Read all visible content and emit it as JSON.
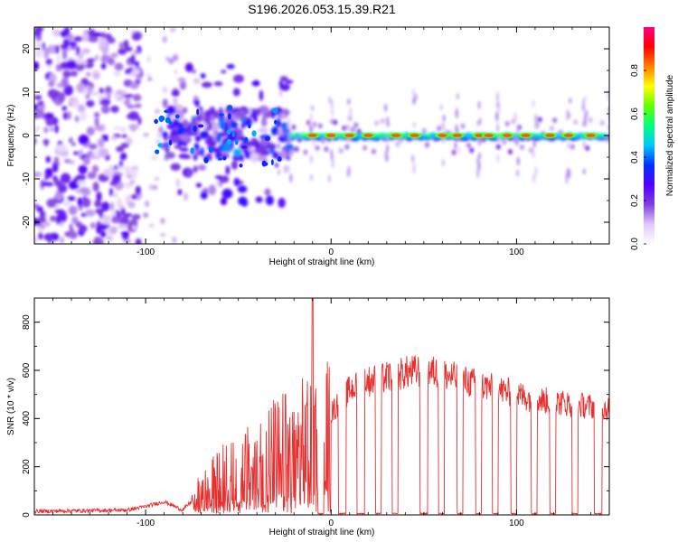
{
  "title": "S196.2026.053.15.39.R21",
  "chart_data": [
    {
      "type": "heatmap",
      "name": "spectrogram",
      "xlabel": "Height of straight line (km)",
      "ylabel": "Frequency (Hz)",
      "xlim": [
        -160,
        150
      ],
      "ylim": [
        -25,
        25
      ],
      "x_ticks": [
        -100,
        0,
        100
      ],
      "y_ticks": [
        -20,
        -10,
        0,
        10,
        20
      ],
      "colorbar": {
        "label": "Normalized spectral amplitude",
        "range": [
          0.0,
          1.0
        ],
        "ticks": [
          0.0,
          0.2,
          0.4,
          0.6,
          0.8
        ],
        "tick_labels": [
          "0.0",
          "0.2",
          "0.4",
          "0.6",
          "0.8"
        ],
        "colors": [
          "#ffffff",
          "#e0c8f8",
          "#8040e0",
          "#5000ff",
          "#0030ff",
          "#00c8ff",
          "#00ff80",
          "#60ff00",
          "#ffff00",
          "#ff8000",
          "#ff0000",
          "#ff0080"
        ]
      },
      "regions": [
        {
          "x": [
            -160,
            -103
          ],
          "desc": "noise",
          "max_amplitude": 0.25
        },
        {
          "x": [
            -103,
            -25
          ],
          "desc": "transition",
          "max_amplitude": 0.4
        },
        {
          "x": [
            -25,
            150
          ],
          "desc": "carrier near 0 Hz",
          "max_amplitude": 0.9
        }
      ],
      "carrier_frequency_hz": 0,
      "hot_spots_km": [
        -10,
        0,
        10,
        20,
        35,
        45,
        60,
        68,
        80,
        85,
        95,
        105,
        118,
        128,
        140
      ]
    },
    {
      "type": "line",
      "name": "snr",
      "xlabel": "Height of straight line (km)",
      "ylabel": "SNR (10 * v/v)",
      "xlim": [
        -160,
        150
      ],
      "ylim": [
        0,
        900
      ],
      "x_ticks": [
        -100,
        0,
        100
      ],
      "y_ticks": [
        0,
        200,
        400,
        600,
        800
      ],
      "color": "#e83030",
      "keypoints": [
        {
          "x": -160,
          "y": 15
        },
        {
          "x": -110,
          "y": 20
        },
        {
          "x": -100,
          "y": 35
        },
        {
          "x": -90,
          "y": 55
        },
        {
          "x": -80,
          "y": 20
        },
        {
          "x": -70,
          "y": 95
        },
        {
          "x": -60,
          "y": 150
        },
        {
          "x": -50,
          "y": 170
        },
        {
          "x": -40,
          "y": 220
        },
        {
          "x": -30,
          "y": 260
        },
        {
          "x": -20,
          "y": 280
        },
        {
          "x": -10,
          "y": 330
        },
        {
          "x": 0,
          "y": 420
        },
        {
          "x": 10,
          "y": 520
        },
        {
          "x": 20,
          "y": 555
        },
        {
          "x": 30,
          "y": 570
        },
        {
          "x": 40,
          "y": 590
        },
        {
          "x": 50,
          "y": 600
        },
        {
          "x": 60,
          "y": 585
        },
        {
          "x": 70,
          "y": 560
        },
        {
          "x": 80,
          "y": 540
        },
        {
          "x": 90,
          "y": 520
        },
        {
          "x": 100,
          "y": 500
        },
        {
          "x": 110,
          "y": 480
        },
        {
          "x": 120,
          "y": 470
        },
        {
          "x": 130,
          "y": 460
        },
        {
          "x": 140,
          "y": 450
        },
        {
          "x": 150,
          "y": 440
        }
      ],
      "spike": {
        "x": -10,
        "y": 900
      },
      "dropouts": [
        {
          "x0": -7,
          "x1": -4
        },
        {
          "x0": 4,
          "x1": 8
        },
        {
          "x0": 14,
          "x1": 18
        },
        {
          "x0": 24,
          "x1": 27
        },
        {
          "x0": 33,
          "x1": 36
        },
        {
          "x0": 48,
          "x1": 52
        },
        {
          "x0": 58,
          "x1": 61
        },
        {
          "x0": 68,
          "x1": 71
        },
        {
          "x0": 78,
          "x1": 81
        },
        {
          "x0": 87,
          "x1": 90
        },
        {
          "x0": 97,
          "x1": 100
        },
        {
          "x0": 108,
          "x1": 111
        },
        {
          "x0": 118,
          "x1": 121
        },
        {
          "x0": 130,
          "x1": 133
        },
        {
          "x0": 142,
          "x1": 146
        }
      ]
    }
  ]
}
